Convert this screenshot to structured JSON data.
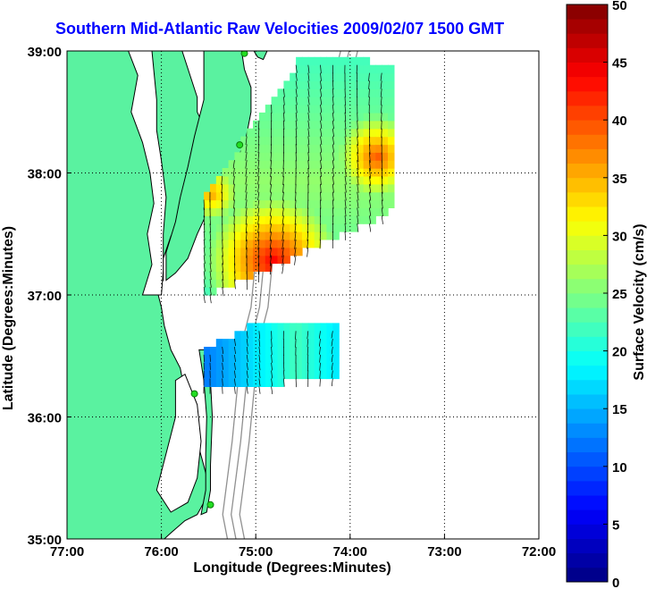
{
  "chart_data": {
    "type": "heatmap",
    "title": "Southern Mid-Atlantic Raw Velocities 2009/02/07 1500 GMT",
    "xlabel": "Longitude (Degrees:Minutes)",
    "ylabel": "Latitude (Degrees:Minutes)",
    "x_ticks": [
      "77:00",
      "76:00",
      "75:00",
      "74:00",
      "73:00",
      "72:00"
    ],
    "y_ticks": [
      "39:00",
      "38:00",
      "37:00",
      "36:00",
      "35:00"
    ],
    "xlim": [
      -77,
      -72
    ],
    "ylim": [
      35,
      39
    ],
    "grid": true,
    "colorbar": {
      "label": "Surface Velocity (cm/s)",
      "ticks": [
        "50",
        "45",
        "40",
        "35",
        "30",
        "25",
        "20",
        "15",
        "10",
        "5",
        "0"
      ],
      "range": [
        0,
        50
      ]
    },
    "colors": {
      "land": "#5af2a0",
      "coast": "#000000",
      "bathymetry": "#909090",
      "station": "#22dd22"
    },
    "stations": [
      {
        "lon": -75.12,
        "lat": 38.98
      },
      {
        "lon": -75.17,
        "lat": 38.23
      },
      {
        "lon": -75.65,
        "lat": 36.19
      },
      {
        "lon": -75.48,
        "lat": 35.28
      }
    ]
  }
}
